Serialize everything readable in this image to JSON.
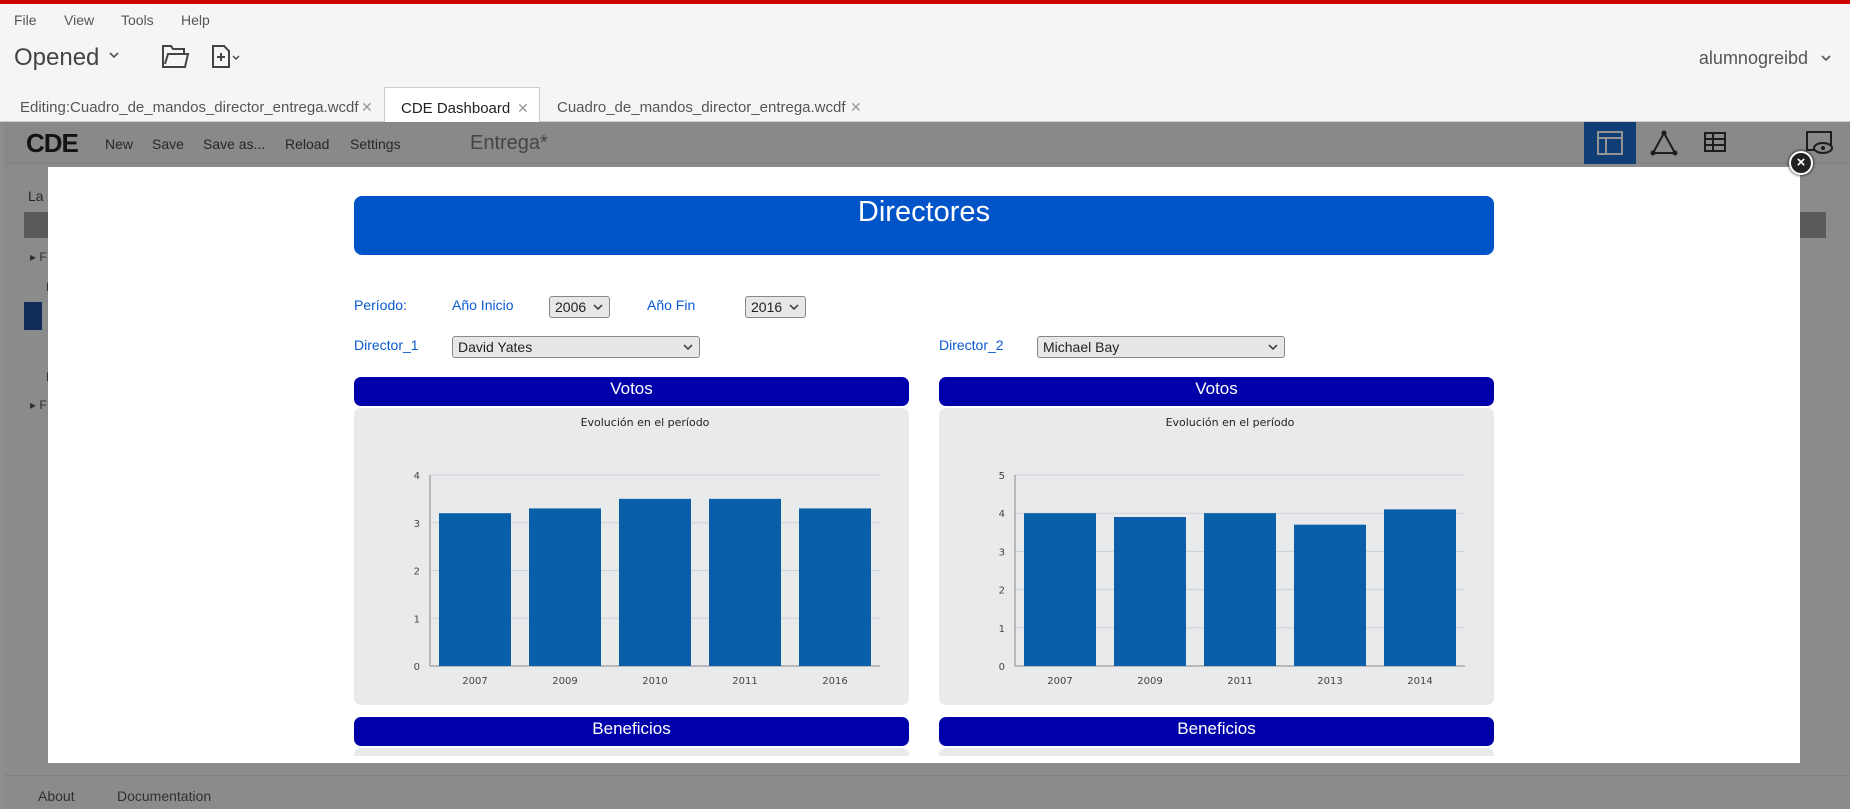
{
  "menubar": {
    "items": [
      "File",
      "View",
      "Tools",
      "Help"
    ]
  },
  "toolbar": {
    "opened_label": "Opened",
    "user_label": "alumnogreibd"
  },
  "tabs": [
    {
      "label": "Editing:Cuadro_de_mandos_director_entrega.wcdf",
      "active": false
    },
    {
      "label": "CDE Dashboard",
      "active": true
    },
    {
      "label": "Cuadro_de_mandos_director_entrega.wcdf",
      "active": false
    }
  ],
  "cde": {
    "logo": "CDE",
    "menu": [
      "New",
      "Save",
      "Save as...",
      "Reload",
      "Settings"
    ],
    "dashboard_title": "Entrega*",
    "footer_links": [
      "About",
      "Documentation"
    ]
  },
  "dashboard": {
    "title": "Directores",
    "period_label": "Período:",
    "start_label": "Año Inicio",
    "start_value": "2006",
    "end_label": "Año Fin",
    "end_value": "2016",
    "director1_label": "Director_1",
    "director1_value": "David Yates",
    "director2_label": "Director_2",
    "director2_value": "Michael Bay",
    "votes_label": "Votos",
    "profits_label": "Beneficios"
  },
  "colors": {
    "bar": "#0a60a8",
    "title_bg": "#0054c8",
    "section_bg": "#0000aa",
    "label": "#0a5ad0",
    "accent": "#cc0000"
  },
  "chart_data": [
    {
      "type": "bar",
      "title": "Evolución en el período",
      "categories": [
        "2007",
        "2009",
        "2010",
        "2011",
        "2016"
      ],
      "values": [
        3.2,
        3.3,
        3.5,
        3.5,
        3.3
      ],
      "ylim": [
        0,
        4
      ],
      "yticks": [
        "0",
        "1",
        "2",
        "3",
        "4"
      ],
      "grid": true
    },
    {
      "type": "bar",
      "title": "Evolución en el período",
      "categories": [
        "2007",
        "2009",
        "2011",
        "2013",
        "2014"
      ],
      "values": [
        4.0,
        3.9,
        4.0,
        3.7,
        4.1
      ],
      "ylim": [
        0,
        5
      ],
      "yticks": [
        "0",
        "1",
        "2",
        "3",
        "4",
        "5"
      ],
      "grid": true
    }
  ]
}
